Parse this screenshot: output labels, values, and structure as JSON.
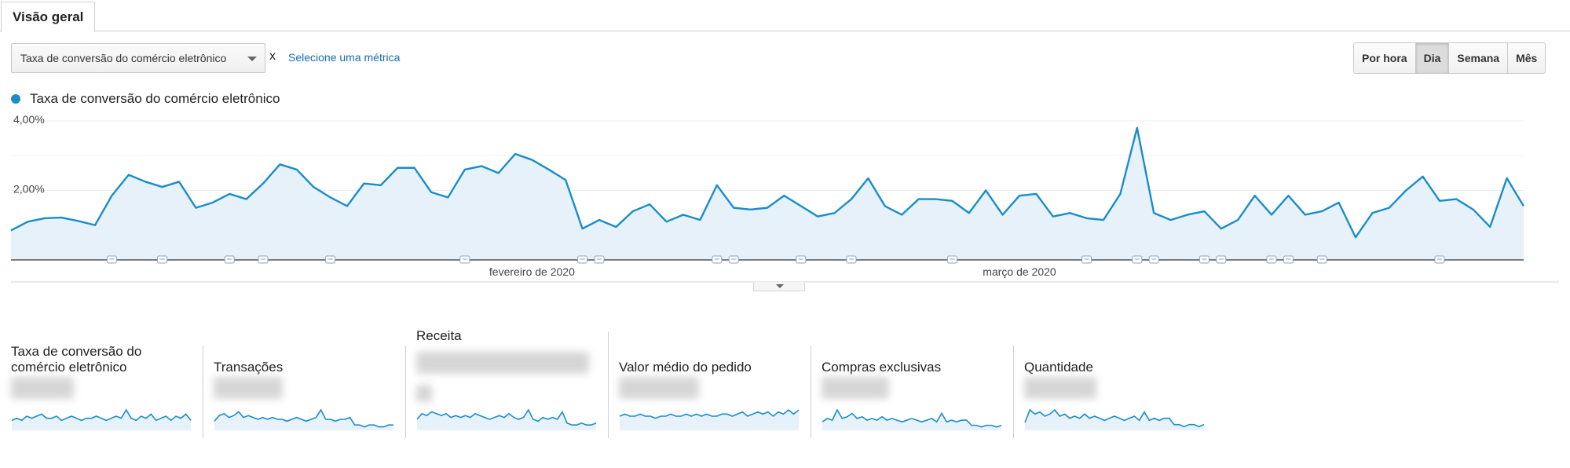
{
  "tabs": [
    {
      "label": "Visão geral"
    }
  ],
  "controls": {
    "metric_select_value": "Taxa de conversão do comércio eletrônico",
    "remove_label": "x",
    "select_metric_link": "Selecione uma métrica",
    "granularity": [
      {
        "label": "Por hora",
        "active": false
      },
      {
        "label": "Dia",
        "active": true
      },
      {
        "label": "Semana",
        "active": false
      },
      {
        "label": "Mês",
        "active": false
      }
    ]
  },
  "colors": {
    "series": "#1a8dc9",
    "fill": "#e6f1fa"
  },
  "chart_data": {
    "type": "area",
    "title": "",
    "series": [
      {
        "name": "Taxa de conversão do comércio eletrônico",
        "values": [
          0.85,
          1.1,
          1.2,
          1.22,
          1.12,
          1.0,
          1.85,
          2.45,
          2.25,
          2.1,
          2.25,
          1.5,
          1.65,
          1.9,
          1.75,
          2.2,
          2.75,
          2.6,
          2.1,
          1.8,
          1.55,
          2.2,
          2.15,
          2.65,
          2.65,
          1.95,
          1.8,
          2.6,
          2.7,
          2.5,
          3.05,
          2.88,
          2.6,
          2.3,
          0.9,
          1.15,
          0.95,
          1.4,
          1.6,
          1.1,
          1.3,
          1.15,
          2.15,
          1.5,
          1.45,
          1.5,
          1.85,
          1.55,
          1.25,
          1.35,
          1.75,
          2.35,
          1.55,
          1.3,
          1.75,
          1.75,
          1.7,
          1.35,
          2.0,
          1.3,
          1.85,
          1.9,
          1.25,
          1.35,
          1.2,
          1.15,
          1.9,
          3.8,
          1.35,
          1.15,
          1.3,
          1.4,
          0.9,
          1.15,
          1.85,
          1.3,
          1.85,
          1.3,
          1.4,
          1.65,
          0.65,
          1.35,
          1.5,
          2.0,
          2.4,
          1.7,
          1.75,
          1.45,
          0.95,
          2.35,
          1.55
        ]
      }
    ],
    "y_ticks": [
      "2,00%",
      "4,00%"
    ],
    "y_tick_values": [
      2,
      4
    ],
    "ylim": [
      0,
      4
    ],
    "month_labels": [
      {
        "label": "fevereiro de 2020",
        "index": 31
      },
      {
        "label": "março de 2020",
        "index": 60
      }
    ],
    "annotation_indices": [
      6,
      9,
      13,
      15,
      19,
      27,
      34,
      35,
      42,
      43,
      47,
      50,
      56,
      64,
      67,
      68,
      71,
      72,
      75,
      76,
      78,
      85
    ],
    "grid": true
  },
  "scorecards": [
    {
      "title": "Taxa de conversão do comércio eletrônico",
      "spark": [
        4,
        5,
        4,
        6,
        5,
        6,
        7,
        5,
        5,
        6,
        4,
        5,
        6,
        5,
        4,
        5,
        5,
        6,
        5,
        4,
        5,
        6,
        5,
        9,
        5,
        4,
        6,
        5,
        7,
        4,
        5,
        6,
        4,
        6,
        5,
        7,
        4
      ]
    },
    {
      "title": "Transações",
      "spark": [
        4,
        7,
        8,
        6,
        7,
        9,
        6,
        7,
        6,
        5,
        6,
        5,
        6,
        5,
        5,
        4,
        5,
        6,
        5,
        4,
        5,
        6,
        10,
        5,
        5,
        4,
        5,
        5,
        6,
        2,
        2,
        1,
        2,
        2,
        1,
        1,
        2,
        2
      ]
    },
    {
      "title": "Receita",
      "spark": [
        5,
        8,
        7,
        9,
        8,
        7,
        8,
        6,
        7,
        6,
        7,
        6,
        8,
        7,
        6,
        5,
        6,
        7,
        6,
        8,
        6,
        5,
        6,
        10,
        5,
        4,
        6,
        5,
        6,
        5,
        9,
        3,
        2,
        2,
        3,
        2,
        2,
        3
      ]
    },
    {
      "title": "Valor médio do pedido",
      "spark": [
        6,
        7,
        6,
        6,
        7,
        6,
        6,
        5,
        6,
        6,
        7,
        6,
        6,
        7,
        6,
        7,
        6,
        7,
        6,
        6,
        7,
        7,
        6,
        7,
        8,
        6,
        7,
        8,
        7,
        8,
        6,
        8,
        7,
        9,
        7,
        9
      ]
    },
    {
      "title": "Compras exclusivas",
      "spark": [
        4,
        6,
        5,
        11,
        6,
        7,
        9,
        6,
        7,
        5,
        6,
        5,
        7,
        5,
        6,
        5,
        4,
        5,
        6,
        5,
        4,
        5,
        6,
        4,
        9,
        4,
        5,
        4,
        5,
        5,
        2,
        2,
        1,
        2,
        2,
        1,
        2
      ]
    },
    {
      "title": "Quantidade",
      "spark": [
        3,
        9,
        7,
        8,
        6,
        7,
        9,
        6,
        7,
        5,
        6,
        5,
        7,
        5,
        6,
        5,
        4,
        5,
        6,
        5,
        4,
        5,
        6,
        4,
        8,
        4,
        5,
        4,
        5,
        5,
        2,
        2,
        1,
        2,
        2,
        1,
        2
      ]
    }
  ]
}
